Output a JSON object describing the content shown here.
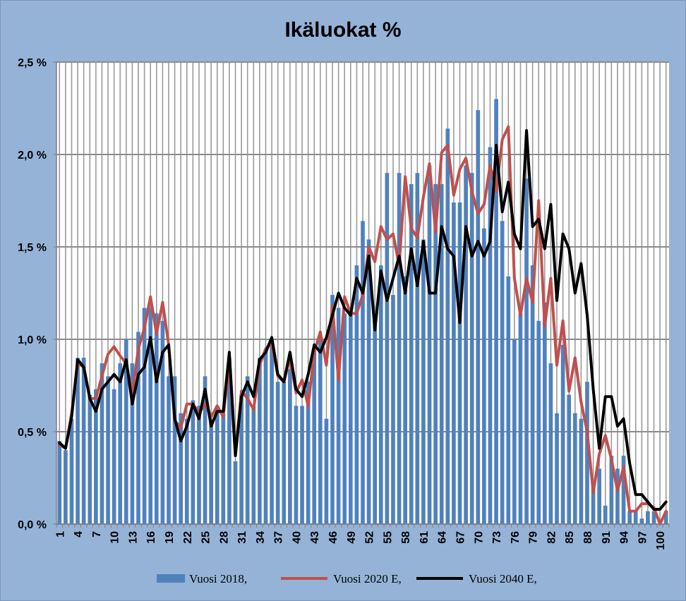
{
  "chart_data": {
    "type": "bar+line",
    "title": "Ikäluokat %",
    "xlabel": "",
    "ylabel": "",
    "ylim": [
      0,
      2.5
    ],
    "y_ticks": [
      "0,0 %",
      "0,5 %",
      "1,0 %",
      "1,5 %",
      "2,0 %",
      "2,5 %"
    ],
    "y_tick_values": [
      0,
      0.5,
      1.0,
      1.5,
      2.0,
      2.5
    ],
    "x_tick_labels": [
      "1",
      "4",
      "7",
      "10",
      "13",
      "16",
      "19",
      "22",
      "25",
      "28",
      "31",
      "34",
      "37",
      "40",
      "43",
      "46",
      "49",
      "52",
      "55",
      "58",
      "61",
      "64",
      "67",
      "70",
      "73",
      "76",
      "79",
      "82",
      "85",
      "88",
      "91",
      "94",
      "97",
      "100"
    ],
    "x": [
      1,
      2,
      3,
      4,
      5,
      6,
      7,
      8,
      9,
      10,
      11,
      12,
      13,
      14,
      15,
      16,
      17,
      18,
      19,
      20,
      21,
      22,
      23,
      24,
      25,
      26,
      27,
      28,
      29,
      30,
      31,
      32,
      33,
      34,
      35,
      36,
      37,
      38,
      39,
      40,
      41,
      42,
      43,
      44,
      45,
      46,
      47,
      48,
      49,
      50,
      51,
      52,
      53,
      54,
      55,
      56,
      57,
      58,
      59,
      60,
      61,
      62,
      63,
      64,
      65,
      66,
      67,
      68,
      69,
      70,
      71,
      72,
      73,
      74,
      75,
      76,
      77,
      78,
      79,
      80,
      81,
      82,
      83,
      84,
      85,
      86,
      87,
      88,
      89,
      90,
      91,
      92,
      93,
      94,
      95,
      96,
      97,
      98,
      99,
      100,
      101
    ],
    "grid": true,
    "legend_position": "bottom",
    "series": [
      {
        "name": "Vuosi 2018,",
        "type": "bar",
        "color": "#4f81bd",
        "values": [
          0.45,
          0.4,
          0.57,
          0.9,
          0.9,
          0.7,
          0.73,
          0.87,
          0.8,
          0.73,
          0.87,
          1.0,
          0.87,
          1.04,
          1.17,
          1.17,
          1.14,
          1.1,
          0.8,
          0.8,
          0.6,
          0.57,
          0.67,
          0.64,
          0.8,
          0.57,
          0.64,
          0.6,
          0.9,
          0.34,
          0.7,
          0.8,
          0.64,
          0.9,
          0.94,
          0.97,
          0.77,
          0.77,
          0.84,
          0.64,
          0.64,
          0.77,
          0.94,
          1.0,
          0.57,
          1.24,
          1.17,
          1.14,
          1.17,
          1.4,
          1.64,
          1.54,
          1.14,
          1.4,
          1.9,
          1.24,
          1.9,
          1.34,
          1.84,
          1.9,
          1.54,
          1.94,
          1.84,
          1.84,
          2.14,
          1.74,
          1.74,
          1.94,
          1.9,
          2.24,
          1.6,
          2.04,
          2.3,
          1.64,
          1.34,
          1.0,
          1.14,
          1.87,
          1.4,
          1.1,
          1.2,
          0.87,
          0.6,
          0.97,
          0.7,
          0.6,
          0.57,
          0.77,
          0.2,
          0.3,
          0.1,
          0.37,
          0.3,
          0.37,
          0.07,
          0.07,
          0.03,
          0.07,
          0.07,
          0.0,
          0.07
        ]
      },
      {
        "name": "Vuosi 2020 E,",
        "type": "line",
        "color": "#c0504d",
        "values": [
          0.43,
          0.41,
          0.6,
          0.87,
          0.85,
          0.68,
          0.68,
          0.8,
          0.92,
          0.96,
          0.91,
          0.87,
          0.7,
          0.95,
          1.06,
          1.23,
          1.03,
          1.2,
          0.97,
          0.56,
          0.52,
          0.65,
          0.65,
          0.6,
          0.65,
          0.58,
          0.64,
          0.58,
          0.87,
          0.37,
          0.72,
          0.68,
          0.62,
          0.86,
          0.95,
          0.98,
          0.8,
          0.77,
          0.9,
          0.71,
          0.78,
          0.64,
          0.93,
          1.04,
          0.86,
          1.18,
          0.78,
          1.23,
          1.14,
          1.14,
          1.24,
          1.5,
          1.42,
          1.61,
          1.54,
          1.57,
          1.4,
          1.88,
          1.6,
          1.55,
          1.77,
          1.95,
          1.58,
          2.01,
          2.05,
          1.78,
          1.92,
          1.98,
          1.8,
          1.68,
          1.73,
          1.94,
          1.8,
          2.08,
          2.15,
          1.33,
          1.13,
          1.33,
          1.2,
          1.75,
          1.07,
          1.33,
          0.86,
          1.1,
          0.72,
          0.9,
          0.66,
          0.5,
          0.17,
          0.38,
          0.48,
          0.35,
          0.18,
          0.31,
          0.07,
          0.07,
          0.11,
          0.11,
          0.09,
          0.0,
          0.07
        ]
      },
      {
        "name": "Vuosi 2040 E,",
        "type": "line",
        "color": "#000000",
        "values": [
          0.44,
          0.41,
          0.58,
          0.89,
          0.85,
          0.68,
          0.61,
          0.73,
          0.77,
          0.81,
          0.77,
          0.89,
          0.65,
          0.81,
          0.85,
          1.01,
          0.77,
          0.93,
          0.97,
          0.57,
          0.45,
          0.53,
          0.65,
          0.57,
          0.73,
          0.53,
          0.61,
          0.61,
          0.93,
          0.37,
          0.69,
          0.77,
          0.69,
          0.89,
          0.93,
          1.01,
          0.81,
          0.77,
          0.93,
          0.73,
          0.69,
          0.81,
          0.97,
          0.93,
          1.01,
          1.13,
          1.25,
          1.17,
          1.13,
          1.33,
          1.25,
          1.45,
          1.05,
          1.37,
          1.21,
          1.33,
          1.45,
          1.25,
          1.49,
          1.29,
          1.53,
          1.25,
          1.25,
          1.61,
          1.49,
          1.45,
          1.09,
          1.61,
          1.45,
          1.53,
          1.45,
          1.53,
          2.05,
          1.69,
          1.85,
          1.57,
          1.49,
          2.13,
          1.61,
          1.65,
          1.49,
          1.73,
          1.21,
          1.57,
          1.49,
          1.25,
          1.41,
          1.13,
          0.73,
          0.41,
          0.69,
          0.69,
          0.53,
          0.57,
          0.33,
          0.16,
          0.16,
          0.12,
          0.08,
          0.08,
          0.12
        ]
      }
    ]
  }
}
